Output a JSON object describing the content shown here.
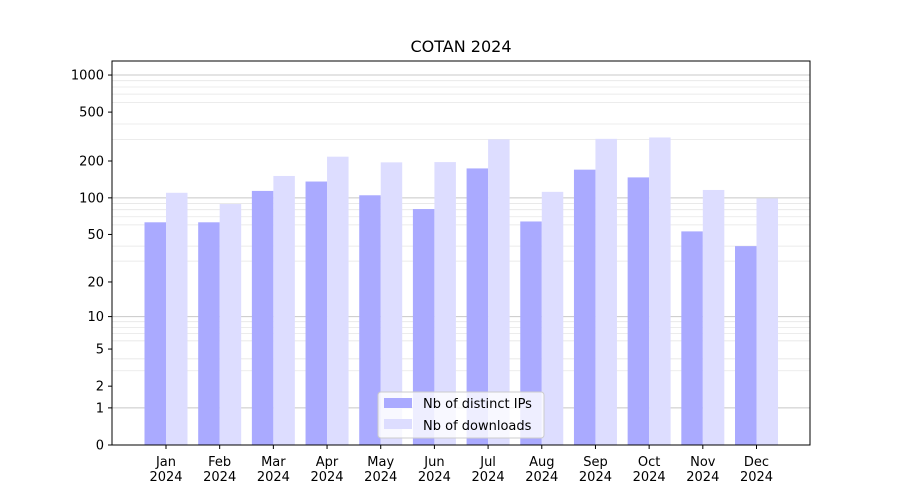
{
  "chart_data": {
    "type": "bar",
    "title": "COTAN 2024",
    "xlabel": "",
    "ylabel": "",
    "yscale": "log1p",
    "ylim": [
      0,
      1300
    ],
    "yticks": [
      {
        "value": 0,
        "label": "0"
      },
      {
        "value": 1,
        "label": "1"
      },
      {
        "value": 2,
        "label": "2"
      },
      {
        "value": 5,
        "label": "5"
      },
      {
        "value": 10,
        "label": "10"
      },
      {
        "value": 20,
        "label": "20"
      },
      {
        "value": 50,
        "label": "50"
      },
      {
        "value": 100,
        "label": "100"
      },
      {
        "value": 200,
        "label": "200"
      },
      {
        "value": 500,
        "label": "500"
      },
      {
        "value": 1000,
        "label": "1000"
      }
    ],
    "grid": true,
    "legend_position": "bottom-center",
    "categories": [
      "Jan\n2024",
      "Feb\n2024",
      "Mar\n2024",
      "Apr\n2024",
      "May\n2024",
      "Jun\n2024",
      "Jul\n2024",
      "Aug\n2024",
      "Sep\n2024",
      "Oct\n2024",
      "Nov\n2024",
      "Dec\n2024"
    ],
    "series": [
      {
        "name": "Nb of distinct IPs",
        "color": "#aaaaff",
        "values": [
          63,
          63,
          114,
          136,
          105,
          81,
          174,
          64,
          170,
          147,
          53,
          40
        ]
      },
      {
        "name": "Nb of downloads",
        "color": "#ddddff",
        "values": [
          110,
          89,
          151,
          217,
          195,
          196,
          300,
          112,
          303,
          311,
          116,
          99
        ]
      }
    ]
  }
}
